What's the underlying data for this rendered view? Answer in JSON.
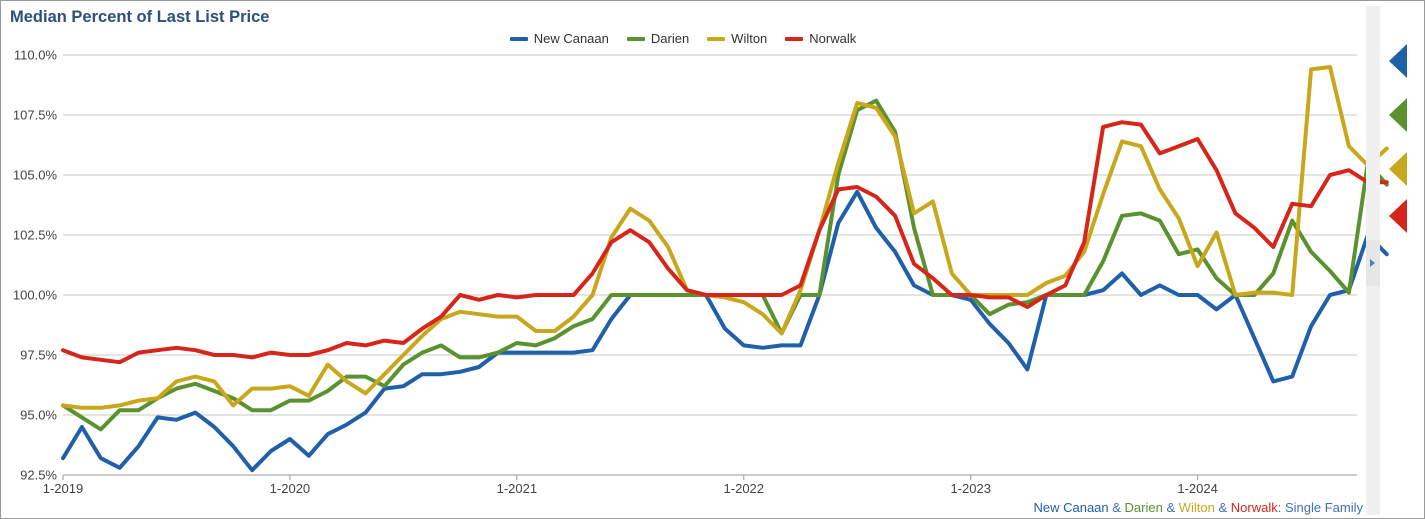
{
  "chart_data": {
    "type": "line",
    "title": "Median Percent of Last List Price",
    "footnote": [
      {
        "text": "New Canaan",
        "color": "#2060aa"
      },
      {
        "text": " & ",
        "color": "#3f6fb3"
      },
      {
        "text": "Darien",
        "color": "#5a9230"
      },
      {
        "text": " & ",
        "color": "#3f6fb3"
      },
      {
        "text": "Wilton",
        "color": "#c9a71c"
      },
      {
        "text": " & ",
        "color": "#3f6fb3"
      },
      {
        "text": "Norwalk",
        "color": "#d6261c"
      },
      {
        "text": ": Single Family",
        "color": "#3f6fb3"
      }
    ],
    "x_tick_labels": [
      "1-2019",
      "1-2020",
      "1-2021",
      "1-2022",
      "1-2023",
      "1-2024"
    ],
    "y_tick_labels": [
      "92.5%",
      "95.0%",
      "97.5%",
      "100.0%",
      "102.5%",
      "105.0%",
      "107.5%",
      "110.0%"
    ],
    "ylim": [
      92.5,
      110
    ],
    "grid": true,
    "legend_position": "top",
    "x_start": "2019-01",
    "x_end": "2024-08",
    "series": [
      {
        "name": "New Canaan",
        "color": "#2060aa",
        "values": [
          93.2,
          94.5,
          93.2,
          92.8,
          93.7,
          94.9,
          94.8,
          95.1,
          94.5,
          93.7,
          92.7,
          93.5,
          94.0,
          93.3,
          94.2,
          94.6,
          95.1,
          96.1,
          96.2,
          96.7,
          96.7,
          96.8,
          97.0,
          97.6,
          97.6,
          97.6,
          97.6,
          97.6,
          97.7,
          99.0,
          100.0,
          100.0,
          100.0,
          100.0,
          100.0,
          98.6,
          97.9,
          97.8,
          97.9,
          97.9,
          100.0,
          103.0,
          104.3,
          102.8,
          101.8,
          100.4,
          100.0,
          100.0,
          99.8,
          98.8,
          98.0,
          96.9,
          100.0,
          100.0,
          100.0,
          100.2,
          100.9,
          100.0,
          100.4,
          100.0,
          100.0,
          99.4,
          100.0,
          98.2,
          96.4,
          96.6,
          98.7,
          100.0,
          100.2,
          102.5,
          101.7
        ]
      },
      {
        "name": "Darien",
        "color": "#5a9230",
        "values": [
          95.4,
          94.9,
          94.4,
          95.2,
          95.2,
          95.7,
          96.1,
          96.3,
          96.0,
          95.7,
          95.2,
          95.2,
          95.6,
          95.6,
          96.0,
          96.6,
          96.6,
          96.2,
          97.1,
          97.6,
          97.9,
          97.4,
          97.4,
          97.6,
          98.0,
          97.9,
          98.2,
          98.7,
          99.0,
          100.0,
          100.0,
          100.0,
          100.0,
          100.0,
          100.0,
          100.0,
          100.0,
          100.0,
          98.4,
          100.0,
          100.0,
          105.0,
          107.7,
          108.1,
          106.8,
          102.8,
          100.0,
          100.0,
          100.0,
          99.2,
          99.6,
          99.7,
          100.0,
          100.0,
          100.0,
          101.4,
          103.3,
          103.4,
          103.1,
          101.7,
          101.9,
          100.7,
          100.0,
          100.0,
          100.9,
          103.1,
          101.8,
          101.0,
          100.1,
          105.5,
          104.6
        ]
      },
      {
        "name": "Wilton",
        "color": "#c9a71c",
        "values": [
          95.4,
          95.3,
          95.3,
          95.4,
          95.6,
          95.7,
          96.4,
          96.6,
          96.4,
          95.4,
          96.1,
          96.1,
          96.2,
          95.8,
          97.1,
          96.4,
          95.9,
          96.7,
          97.5,
          98.3,
          99.0,
          99.3,
          99.2,
          99.1,
          99.1,
          98.5,
          98.5,
          99.1,
          100.0,
          102.4,
          103.6,
          103.1,
          102.0,
          100.2,
          100.0,
          99.9,
          99.7,
          99.2,
          98.4,
          100.2,
          102.7,
          105.5,
          108.0,
          107.8,
          106.6,
          103.4,
          103.9,
          100.9,
          100.0,
          100.0,
          100.0,
          100.0,
          100.5,
          100.8,
          101.8,
          104.2,
          106.4,
          106.2,
          104.4,
          103.2,
          101.2,
          102.6,
          100.0,
          100.1,
          100.1,
          100.0,
          109.4,
          109.5,
          106.2,
          105.4,
          106.1
        ]
      },
      {
        "name": "Norwalk",
        "color": "#d6261c",
        "values": [
          97.7,
          97.4,
          97.3,
          97.2,
          97.6,
          97.7,
          97.8,
          97.7,
          97.5,
          97.5,
          97.4,
          97.6,
          97.5,
          97.5,
          97.7,
          98.0,
          97.9,
          98.1,
          98.0,
          98.6,
          99.1,
          100.0,
          99.8,
          100.0,
          99.9,
          100.0,
          100.0,
          100.0,
          100.9,
          102.2,
          102.7,
          102.2,
          101.1,
          100.2,
          100.0,
          100.0,
          100.0,
          100.0,
          100.0,
          100.4,
          102.7,
          104.4,
          104.5,
          104.1,
          103.3,
          101.3,
          100.7,
          100.0,
          100.0,
          99.9,
          99.9,
          99.5,
          100.0,
          100.4,
          102.2,
          107.0,
          107.2,
          107.1,
          105.9,
          106.2,
          106.5,
          105.2,
          103.4,
          102.8,
          102.0,
          103.8,
          103.7,
          105.0,
          105.2,
          104.7,
          104.7
        ]
      }
    ]
  },
  "right_markers": [
    {
      "color": "#2060aa"
    },
    {
      "color": "#5a9230"
    },
    {
      "color": "#c9a71c"
    },
    {
      "color": "#d6261c"
    }
  ]
}
